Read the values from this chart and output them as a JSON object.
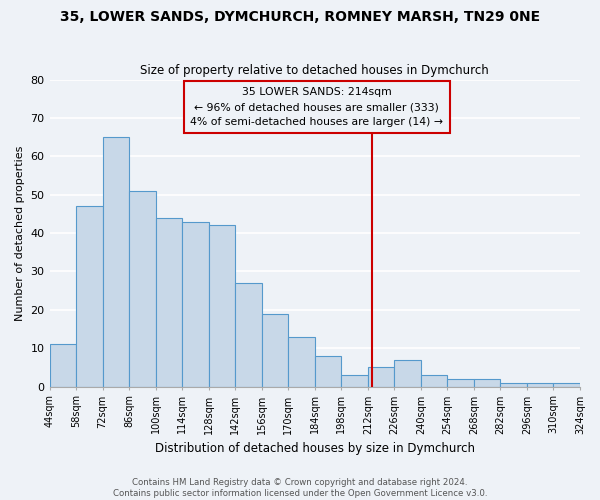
{
  "title": "35, LOWER SANDS, DYMCHURCH, ROMNEY MARSH, TN29 0NE",
  "subtitle": "Size of property relative to detached houses in Dymchurch",
  "xlabel": "Distribution of detached houses by size in Dymchurch",
  "ylabel": "Number of detached properties",
  "bar_edges": [
    44,
    58,
    72,
    86,
    100,
    114,
    128,
    142,
    156,
    170,
    184,
    198,
    212,
    226,
    240,
    254,
    268,
    282,
    296,
    310,
    324
  ],
  "bar_heights": [
    11,
    47,
    65,
    51,
    44,
    43,
    42,
    27,
    19,
    13,
    8,
    3,
    5,
    7,
    3,
    2,
    2,
    1,
    1,
    1
  ],
  "bar_color": "#c8d8e8",
  "bar_edgecolor": "#5599cc",
  "vline_x": 214,
  "vline_color": "#cc0000",
  "annotation_title": "35 LOWER SANDS: 214sqm",
  "annotation_line1": "← 96% of detached houses are smaller (333)",
  "annotation_line2": "4% of semi-detached houses are larger (14) →",
  "annotation_box_edgecolor": "#cc0000",
  "ylim": [
    0,
    80
  ],
  "yticks": [
    0,
    10,
    20,
    30,
    40,
    50,
    60,
    70,
    80
  ],
  "tick_labels": [
    "44sqm",
    "58sqm",
    "72sqm",
    "86sqm",
    "100sqm",
    "114sqm",
    "128sqm",
    "142sqm",
    "156sqm",
    "170sqm",
    "184sqm",
    "198sqm",
    "212sqm",
    "226sqm",
    "240sqm",
    "254sqm",
    "268sqm",
    "282sqm",
    "296sqm",
    "310sqm",
    "324sqm"
  ],
  "footnote": "Contains HM Land Registry data © Crown copyright and database right 2024.\nContains public sector information licensed under the Open Government Licence v3.0.",
  "background_color": "#eef2f7",
  "grid_color": "#ffffff"
}
